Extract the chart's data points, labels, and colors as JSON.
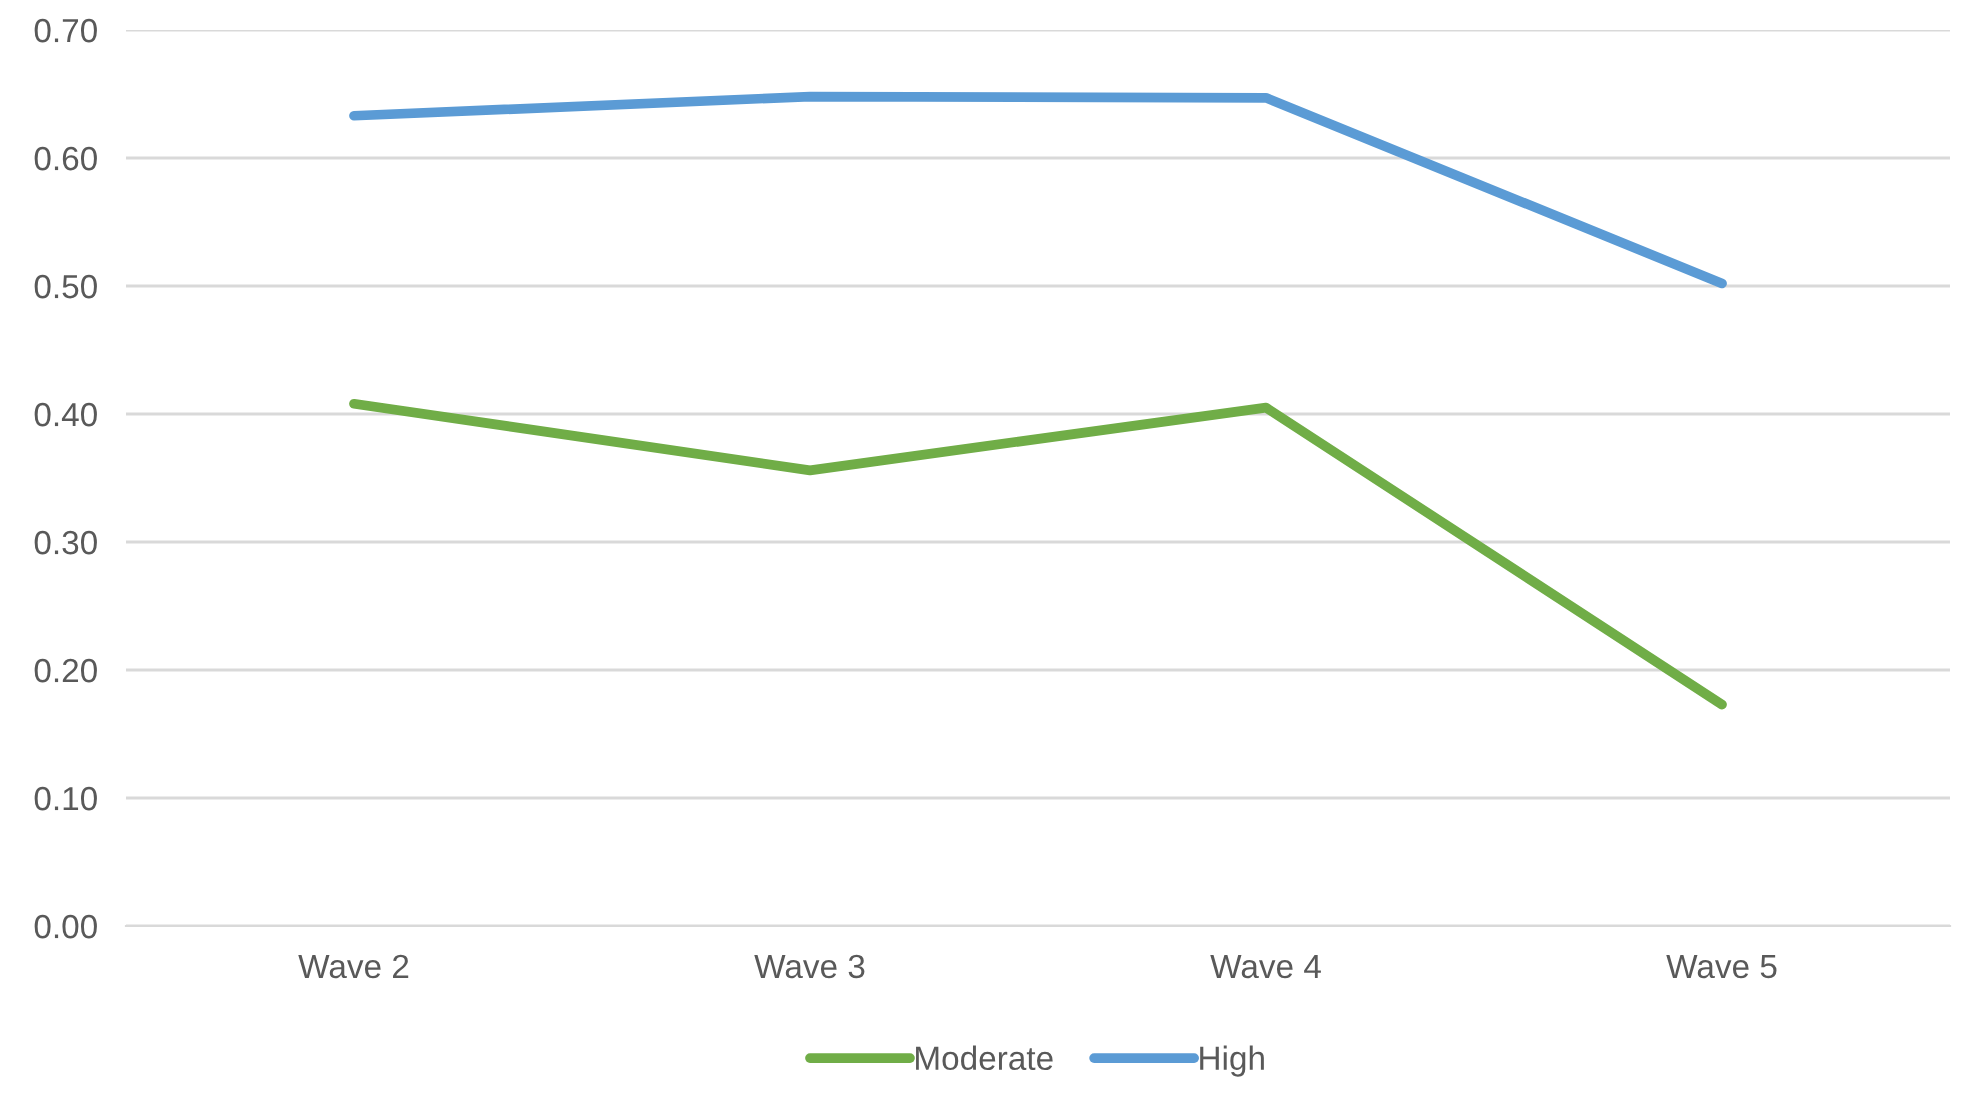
{
  "chart_data": {
    "type": "line",
    "categories": [
      "Wave 2",
      "Wave 3",
      "Wave 4",
      "Wave 5"
    ],
    "series": [
      {
        "name": "Moderate",
        "color": "#70ad47",
        "values": [
          0.408,
          0.356,
          0.405,
          0.173
        ]
      },
      {
        "name": "High",
        "color": "#5b9bd5",
        "values": [
          0.633,
          0.648,
          0.647,
          0.502
        ]
      }
    ],
    "ylim": [
      0,
      0.7
    ],
    "yticks": [
      {
        "value": 0,
        "label": "0.00"
      },
      {
        "value": 0.1,
        "label": "0.10"
      },
      {
        "value": 0.2,
        "label": "0.20"
      },
      {
        "value": 0.3,
        "label": "0.30"
      },
      {
        "value": 0.4,
        "label": "0.40"
      },
      {
        "value": 0.5,
        "label": "0.50"
      },
      {
        "value": 0.6,
        "label": "0.60"
      },
      {
        "value": 0.7,
        "label": "0.70"
      }
    ],
    "grid": "y",
    "legend": "bottom",
    "marker": "none",
    "line_style": "solid"
  }
}
